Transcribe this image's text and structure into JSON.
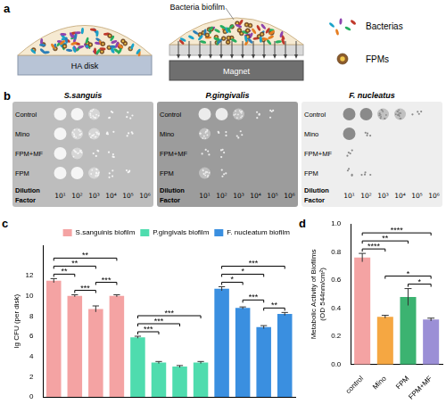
{
  "figure": {
    "a": {
      "panel_label": "a",
      "disk": "HA disk",
      "biofilm": "Bacteria biofilm",
      "magnet": "Magnet",
      "legend_items": [
        "Bacterias",
        "FPMs"
      ]
    },
    "b": {
      "panel_label": "b",
      "rows": [
        "Control",
        "Mino",
        "FPM+MF",
        "FPM"
      ],
      "dilution_label": "Dilution Factor",
      "dilutions": [
        "10¹",
        "10²",
        "10³",
        "10⁴",
        "10⁵",
        "10⁶"
      ],
      "plates": [
        {
          "title": "S.sanguis",
          "growth": [
            [
              3,
              3,
              2,
              1,
              1,
              0
            ],
            [
              3,
              2,
              2,
              1,
              1,
              0
            ],
            [
              3,
              2,
              1,
              1,
              0,
              0
            ],
            [
              3,
              3,
              2,
              1,
              1,
              0
            ]
          ]
        },
        {
          "title": "P.gingivalis",
          "growth": [
            [
              3,
              3,
              2,
              1,
              1,
              0
            ],
            [
              2,
              1,
              1,
              0,
              0,
              0
            ],
            [
              1,
              1,
              0,
              0,
              0,
              0
            ],
            [
              2,
              1,
              0,
              0,
              0,
              0
            ]
          ]
        },
        {
          "title": "F. nucleatus",
          "growth": [
            [
              3,
              3,
              2,
              2,
              1,
              0
            ],
            [
              3,
              1,
              0,
              0,
              0,
              0
            ],
            [
              1,
              0,
              0,
              0,
              0,
              0
            ],
            [
              1,
              1,
              0,
              0,
              0,
              0
            ]
          ]
        }
      ]
    }
  },
  "chart_data": [
    {
      "type": "bar",
      "panel_label": "c",
      "y_label": "lg CFU (per disk)",
      "categories": [
        null,
        null,
        null,
        null,
        null,
        null,
        null,
        null,
        null,
        null,
        null,
        null
      ],
      "series": [
        {
          "name": "S.sanguinis biofilm",
          "color": "#f4a3a3",
          "values": [
            11.5,
            10.0,
            8.7,
            10.0,
            null,
            null,
            null,
            null,
            null,
            null,
            null,
            null
          ],
          "errors": [
            0.2,
            0.1,
            0.3,
            0.1,
            null,
            null,
            null,
            null,
            null,
            null,
            null,
            null
          ]
        },
        {
          "name": "P.gingivals biofilm",
          "color": "#4fdcae",
          "values": [
            null,
            null,
            null,
            null,
            5.9,
            3.4,
            3.0,
            3.4,
            null,
            null,
            null,
            null
          ],
          "errors": [
            null,
            null,
            null,
            null,
            0.1,
            0.1,
            0.1,
            0.1,
            null,
            null,
            null,
            null
          ]
        },
        {
          "name": "F. nucleatum biofilm",
          "color": "#3a8fe0",
          "values": [
            null,
            null,
            null,
            null,
            null,
            null,
            null,
            null,
            10.7,
            8.8,
            6.9,
            8.2
          ],
          "errors": [
            null,
            null,
            null,
            null,
            null,
            null,
            null,
            null,
            0.2,
            0.1,
            0.15,
            0.15
          ]
        }
      ],
      "ylim": [
        0,
        15
      ],
      "yticks": [
        0,
        2,
        4,
        6,
        8,
        10,
        12
      ],
      "grid": false,
      "legend": "top",
      "tick_labels": "y",
      "significance": [
        {
          "from": 1,
          "to": 2,
          "label": "***"
        },
        {
          "from": 2,
          "to": 3,
          "label": "***"
        },
        {
          "from": 0,
          "to": 1,
          "label": "**"
        },
        {
          "from": 0,
          "to": 2,
          "label": "**"
        },
        {
          "from": 0,
          "to": 3,
          "label": "**"
        },
        {
          "from": 4,
          "to": 5,
          "label": "***"
        },
        {
          "from": 4,
          "to": 6,
          "label": "***"
        },
        {
          "from": 4,
          "to": 7,
          "label": "***"
        },
        {
          "from": 10,
          "to": 11,
          "label": "**"
        },
        {
          "from": 9,
          "to": 10,
          "label": "***"
        },
        {
          "from": 8,
          "to": 9,
          "label": "*"
        },
        {
          "from": 8,
          "to": 10,
          "label": "*"
        },
        {
          "from": 8,
          "to": 11,
          "label": "***"
        }
      ]
    },
    {
      "type": "bar",
      "panel_label": "d",
      "y_label": [
        "Metabolic Activity of Biofilms",
        "(OD 544nm/cm²)"
      ],
      "categories": [
        "control",
        "Mino",
        "FPM",
        "FPM+MF"
      ],
      "values": [
        0.76,
        0.34,
        0.48,
        0.32
      ],
      "errors": [
        0.03,
        0.01,
        0.06,
        0.01
      ],
      "colors": [
        "#f4a3a3",
        "#f5a742",
        "#3cb371",
        "#9b8fd6"
      ],
      "ylim": [
        0,
        1
      ],
      "yticks": [
        {
          "value": 0,
          "label": "0.0"
        },
        0.2,
        0.4,
        0.6,
        0.8,
        {
          "value": 1,
          "label": "1.0"
        }
      ],
      "grid": false,
      "significance": [
        {
          "from": 2,
          "to": 3,
          "label": "*"
        },
        {
          "from": 1,
          "to": 3,
          "label": "*"
        },
        {
          "from": 0,
          "to": 1,
          "label": "****"
        },
        {
          "from": 0,
          "to": 2,
          "label": "**"
        },
        {
          "from": 0,
          "to": 3,
          "label": "****"
        }
      ]
    }
  ]
}
